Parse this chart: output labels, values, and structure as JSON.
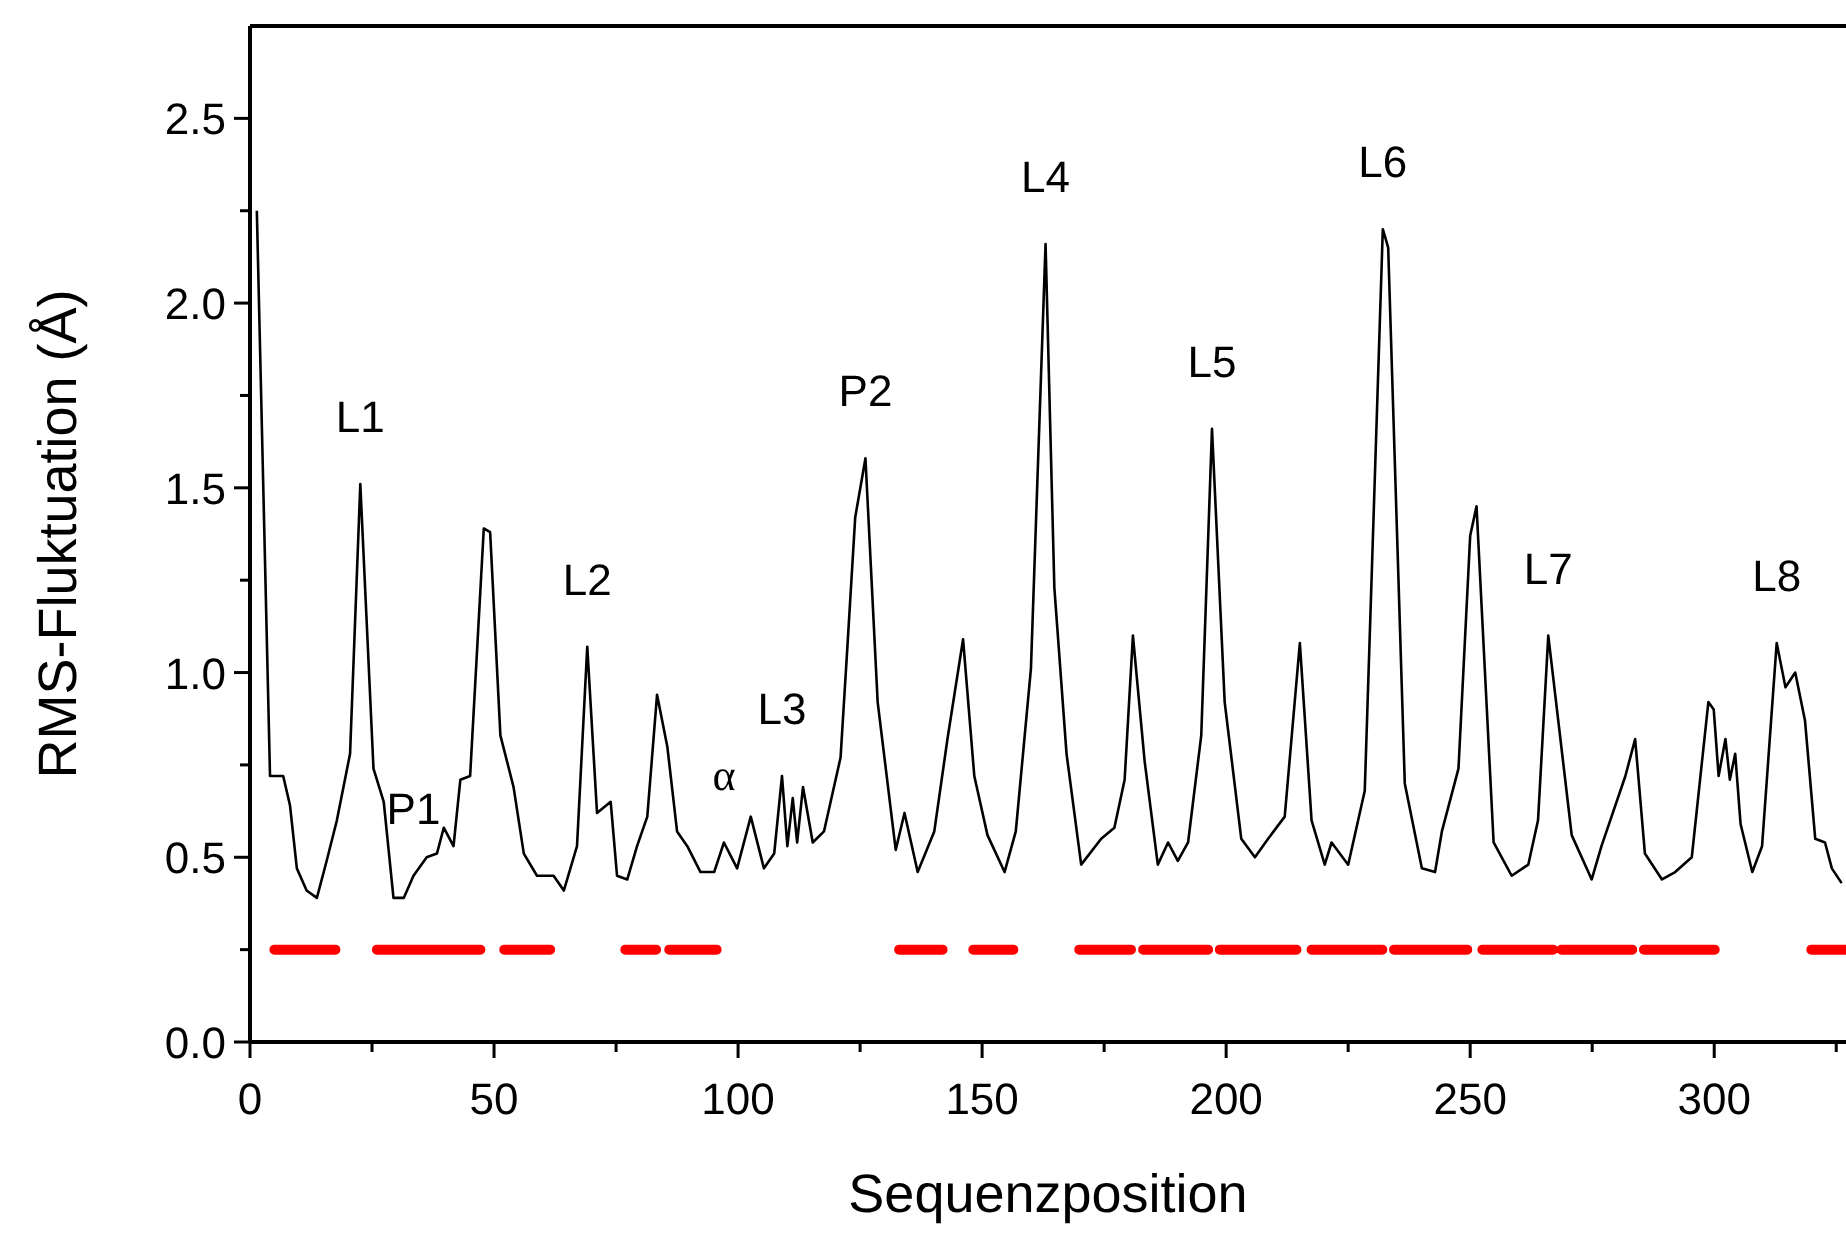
{
  "chart_data": {
    "type": "line",
    "xlabel": "Sequenzposition",
    "ylabel": "RMS-Fluktuation (Å)",
    "xlim": [
      0,
      327
    ],
    "ylim": [
      0,
      2.75
    ],
    "xticks": [
      0,
      {
        "value": 25,
        "label": null
      },
      50,
      {
        "value": 75,
        "label": null
      },
      100,
      {
        "value": 125,
        "label": null
      },
      150,
      {
        "value": 175,
        "label": null
      },
      200,
      {
        "value": 225,
        "label": null
      },
      250,
      {
        "value": 275,
        "label": null
      },
      300,
      {
        "value": 325,
        "label": null
      }
    ],
    "yticks": [
      {
        "value": 0,
        "label": "0.0"
      },
      {
        "value": 0.25,
        "label": null
      },
      {
        "value": 0.5,
        "label": "0.5"
      },
      {
        "value": 0.75,
        "label": null
      },
      {
        "value": 1,
        "label": "1.0"
      },
      {
        "value": 1.25,
        "label": null
      },
      {
        "value": 1.5,
        "label": "1.5"
      },
      {
        "value": 1.75,
        "label": null
      },
      {
        "value": 2,
        "label": "2.0"
      },
      {
        "value": 2.25,
        "label": null
      },
      {
        "value": 2.5,
        "label": "2.5"
      }
    ],
    "series": [
      {
        "type": "line",
        "color": "#000000",
        "x": [
          1.4,
          4.1,
          6.8,
          8.2,
          9.6,
          11.6,
          13.7,
          15.7,
          17.8,
          20.5,
          22.6,
          25.3,
          27.4,
          29.4,
          31.5,
          33.5,
          36.2,
          38.3,
          39.7,
          41.7,
          43.1,
          45.1,
          47.9,
          49.2,
          51.3,
          54.0,
          56.1,
          58.8,
          62.2,
          64.3,
          67.0,
          69.1,
          71.1,
          73.9,
          75.2,
          77.3,
          79.3,
          81.4,
          83.4,
          85.5,
          87.5,
          89.6,
          92.3,
          95.1,
          97.1,
          99.8,
          102.6,
          105.3,
          107.4,
          109.0,
          110.1,
          111.2,
          112.1,
          113.3,
          115.3,
          117.6,
          121.0,
          122.4,
          124.0,
          126.1,
          128.6,
          132.3,
          134.1,
          136.8,
          140.2,
          142.9,
          146.1,
          148.4,
          151.1,
          154.6,
          156.9,
          160.0,
          163.0,
          164.8,
          167.3,
          170.3,
          174.4,
          177.1,
          179.2,
          180.9,
          183.3,
          186.0,
          188.1,
          190.1,
          192.2,
          194.9,
          197.1,
          199.7,
          203.1,
          205.9,
          208.6,
          212.0,
          215.1,
          217.5,
          220.2,
          221.6,
          225.0,
          228.4,
          232.1,
          233.2,
          236.6,
          240.1,
          242.8,
          244.2,
          247.6,
          250.0,
          251.3,
          254.8,
          258.5,
          261.9,
          263.9,
          266.0,
          270.8,
          274.9,
          276.9,
          281.8,
          283.8,
          285.8,
          289.3,
          292.0,
          295.4,
          298.8,
          299.9,
          300.9,
          302.3,
          303.2,
          304.3,
          305.4,
          307.8,
          309.8,
          312.8,
          314.6,
          316.6,
          318.6,
          320.7,
          322.7,
          324.1,
          326.1
        ],
        "values": [
          2.25,
          0.72,
          0.72,
          0.64,
          0.47,
          0.41,
          0.39,
          0.49,
          0.6,
          0.78,
          1.51,
          0.74,
          0.65,
          0.39,
          0.39,
          0.45,
          0.5,
          0.51,
          0.58,
          0.53,
          0.71,
          0.72,
          1.39,
          1.38,
          0.83,
          0.69,
          0.51,
          0.45,
          0.45,
          0.41,
          0.53,
          1.07,
          0.62,
          0.65,
          0.45,
          0.44,
          0.53,
          0.61,
          0.94,
          0.8,
          0.57,
          0.53,
          0.46,
          0.46,
          0.54,
          0.47,
          0.61,
          0.47,
          0.51,
          0.72,
          0.53,
          0.66,
          0.54,
          0.69,
          0.54,
          0.57,
          0.77,
          1.07,
          1.42,
          1.58,
          0.92,
          0.52,
          0.62,
          0.46,
          0.57,
          0.82,
          1.09,
          0.72,
          0.56,
          0.46,
          0.57,
          1.01,
          2.16,
          1.23,
          0.78,
          0.48,
          0.55,
          0.58,
          0.71,
          1.1,
          0.76,
          0.48,
          0.54,
          0.49,
          0.54,
          0.83,
          1.66,
          0.92,
          0.55,
          0.5,
          0.55,
          0.61,
          1.08,
          0.6,
          0.48,
          0.54,
          0.48,
          0.68,
          2.2,
          2.15,
          0.7,
          0.47,
          0.46,
          0.57,
          0.74,
          1.37,
          1.45,
          0.54,
          0.45,
          0.48,
          0.6,
          1.1,
          0.56,
          0.44,
          0.53,
          0.72,
          0.82,
          0.51,
          0.44,
          0.46,
          0.5,
          0.92,
          0.9,
          0.72,
          0.82,
          0.71,
          0.78,
          0.59,
          0.46,
          0.53,
          1.08,
          0.96,
          1.0,
          0.87,
          0.55,
          0.54,
          0.47,
          0.43
        ]
      },
      {
        "type": "line",
        "color": "#ff0000",
        "x": [
          5.0,
          17.5,
          17.6,
          26.0,
          47.2,
          47.3,
          52.1,
          61.5,
          61.6,
          76.9,
          83.2,
          83.3,
          85.9,
          95.6,
          95.7,
          133.0,
          141.9,
          142.0,
          148.2,
          156.4,
          156.5,
          169.9,
          180.5,
          180.6,
          183.0,
          196.3,
          196.4,
          198.7,
          214.4,
          214.5,
          217.5,
          232.0,
          232.1,
          234.4,
          249.4,
          249.5,
          252.5,
          267.0,
          267.1,
          268.7,
          283.2,
          283.3,
          285.6,
          300.1,
          300.2,
          319.9,
          327
        ],
        "values": [
          0.25,
          0.25,
          null,
          0.25,
          0.25,
          null,
          0.25,
          0.25,
          null,
          0.25,
          0.25,
          null,
          0.25,
          0.25,
          null,
          0.25,
          0.25,
          null,
          0.25,
          0.25,
          null,
          0.25,
          0.25,
          null,
          0.25,
          0.25,
          null,
          0.25,
          0.25,
          null,
          0.25,
          0.25,
          null,
          0.25,
          0.25,
          null,
          0.25,
          0.25,
          null,
          0.25,
          0.25,
          null,
          0.25,
          0.25,
          null,
          0.25,
          0.25
        ]
      }
    ],
    "annotations": [
      {
        "text": "L1",
        "x": 22.6,
        "y": 1.51
      },
      {
        "text": "P1",
        "x": 33.5,
        "y": 0.45
      },
      {
        "text": "L2",
        "x": 69.1,
        "y": 1.07
      },
      {
        "text": "α",
        "x": 97.1,
        "y": 0.54
      },
      {
        "text": "L3",
        "x": 109,
        "y": 0.72
      },
      {
        "text": "P2",
        "x": 126.1,
        "y": 1.58
      },
      {
        "text": "L4",
        "x": 163,
        "y": 2.16
      },
      {
        "text": "L5",
        "x": 197.1,
        "y": 1.66
      },
      {
        "text": "L6",
        "x": 232.1,
        "y": 2.2
      },
      {
        "text": "L7",
        "x": 266,
        "y": 1.1
      },
      {
        "text": "L8",
        "x": 312.8,
        "y": 1.08
      }
    ]
  }
}
